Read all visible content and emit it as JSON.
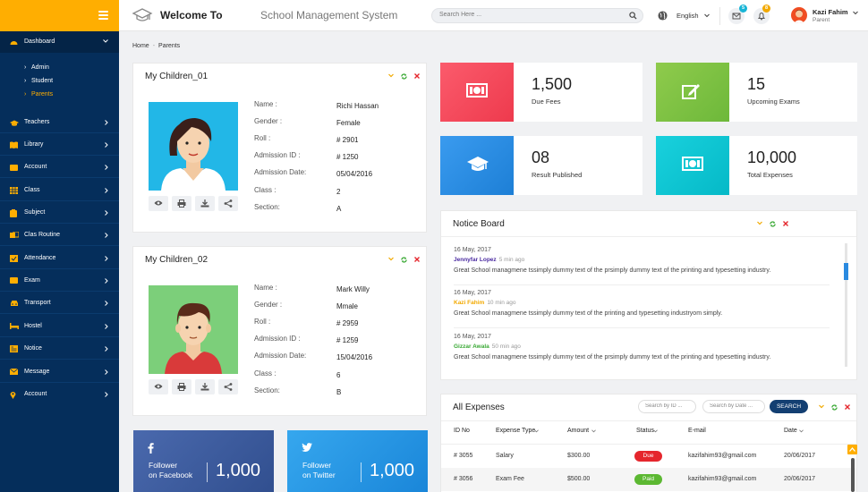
{
  "header": {
    "title": "Welcome To",
    "app_name": "School Management System",
    "search_placeholder": "Search Here ...",
    "language": "English",
    "messages_badge": "5",
    "notifications_badge": "8",
    "user_name": "Kazi Fahim",
    "user_role": "Parent"
  },
  "sidebar": {
    "items": [
      {
        "label": "Dashboard"
      },
      {
        "label": "Teachers"
      },
      {
        "label": "Library"
      },
      {
        "label": "Account"
      },
      {
        "label": "Class"
      },
      {
        "label": "Subject"
      },
      {
        "label": "Clas Routine"
      },
      {
        "label": "Attendance"
      },
      {
        "label": "Exam"
      },
      {
        "label": "Transport"
      },
      {
        "label": "Hostel"
      },
      {
        "label": "Notice"
      },
      {
        "label": "Message"
      },
      {
        "label": "Account"
      }
    ],
    "dashboard_sub": [
      "Admin",
      "Student",
      "Parents"
    ]
  },
  "breadcrumb": {
    "home": "Home",
    "current": "Parents"
  },
  "children": [
    {
      "title": "My Children_01",
      "fields": [
        {
          "k": "Name :",
          "v": "Richi Hassan"
        },
        {
          "k": "Gender :",
          "v": "Female"
        },
        {
          "k": "Roll :",
          "v": "# 2901"
        },
        {
          "k": "Admission ID :",
          "v": "# 1250"
        },
        {
          "k": "Admission Date:",
          "v": "05/04/2016"
        },
        {
          "k": "Class :",
          "v": "2"
        },
        {
          "k": "Section:",
          "v": "A"
        }
      ]
    },
    {
      "title": "My Children_02",
      "fields": [
        {
          "k": "Name :",
          "v": "Mark Willy"
        },
        {
          "k": "Gender :",
          "v": "Mmale"
        },
        {
          "k": "Roll :",
          "v": "# 2959"
        },
        {
          "k": "Admission ID :",
          "v": "# 1259"
        },
        {
          "k": "Admission Date:",
          "v": "15/04/2016"
        },
        {
          "k": "Class :",
          "v": "6"
        },
        {
          "k": "Section:",
          "v": "B"
        }
      ]
    }
  ],
  "stats": [
    {
      "value": "1,500",
      "label": "Due Fees",
      "color": "#f2475a"
    },
    {
      "value": "15",
      "label": "Upcoming Exams",
      "color": "#7dc243"
    },
    {
      "value": "08",
      "label": "Result Published",
      "color": "#2a8ae0"
    },
    {
      "value": "10,000",
      "label": "Total Expenses",
      "color": "#0ec6d4"
    }
  ],
  "notice_board": {
    "title": "Notice Board",
    "entries": [
      {
        "date": "16 May, 2017",
        "author": "Jennyfar Lopez",
        "author_color": "#4a2aa0",
        "ago": "5 min ago",
        "text": "Great School managmene tssimply dummy text of the prsimply dummy text of the printing and typesetting industry."
      },
      {
        "date": "16 May, 2017",
        "author": "Kazi Fahim",
        "author_color": "#f2a900",
        "ago": "10 min ago",
        "text": "Great School managmene tssimply dummy text of the printing and typesetting industryom simply."
      },
      {
        "date": "16 May, 2017",
        "author": "Gizzar Awala",
        "author_color": "#3aa935",
        "ago": "50 min ago",
        "text": "Great School managmene tssimply dummy text of the prsimply dummy text of the printing and typesetting industry."
      }
    ]
  },
  "expenses": {
    "title": "All Expenses",
    "search_id_placeholder": "Search by ID ...",
    "search_date_placeholder": "Search by Date ...",
    "search_button": "SEARCH",
    "columns": [
      "ID No",
      "Expense Type",
      "Amount",
      "Status",
      "E-mail",
      "Date"
    ],
    "rows": [
      {
        "id": "# 3055",
        "type": "Salary",
        "amount": "$300.00",
        "status": "Due",
        "status_color": "#e5262d",
        "email": "kazifahim93@gmail.com",
        "date": "20/06/2017"
      },
      {
        "id": "# 3056",
        "type": "Exam Fee",
        "amount": "$500.00",
        "status": "Paid",
        "status_color": "#5cb832",
        "email": "kazifahim93@gmail.com",
        "date": "20/06/2017"
      }
    ]
  },
  "social": [
    {
      "line1": "Follower",
      "line2": "on Facebook",
      "count": "1,000",
      "color": "#3b5998"
    },
    {
      "line1": "Follower",
      "line2": "on Twitter",
      "count": "1,000",
      "color": "#2796e3"
    }
  ]
}
